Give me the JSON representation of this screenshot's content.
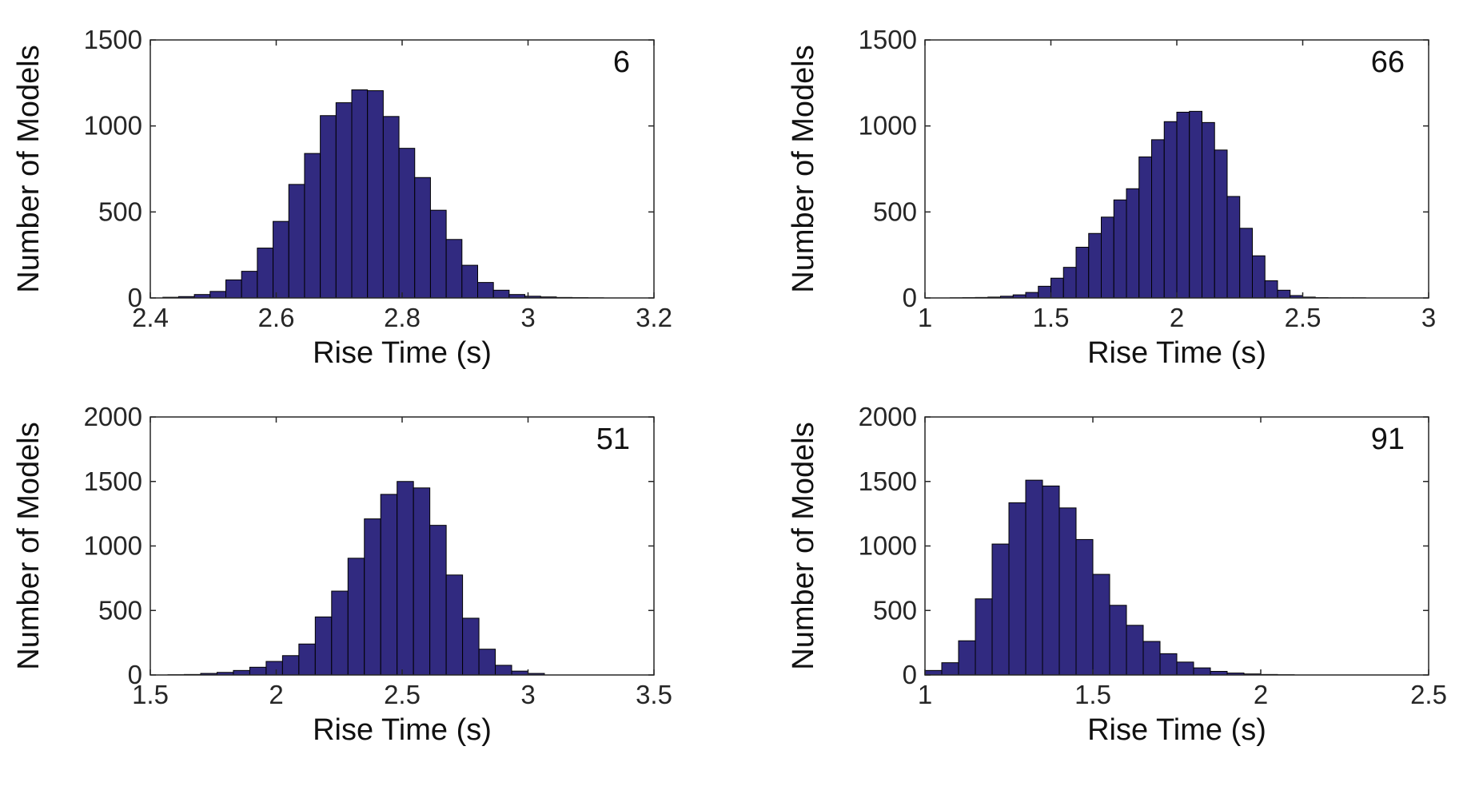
{
  "colors": {
    "bar_fill": "#312a80",
    "bar_stroke": "#000000",
    "axis": "#262626"
  },
  "chart_data": [
    {
      "type": "bar",
      "id_label": "6",
      "xlabel": "Rise Time (s)",
      "ylabel": "Number of Models",
      "xlim": [
        2.4,
        3.2
      ],
      "ylim": [
        0,
        1500
      ],
      "xticks": [
        2.4,
        2.6,
        2.8,
        3,
        3.2
      ],
      "xtick_labels": [
        "2.4",
        "2.6",
        "2.8",
        "3",
        "3.2"
      ],
      "yticks": [
        0,
        500,
        1000,
        1500
      ],
      "ytick_labels": [
        "0",
        "500",
        "1000",
        "1500"
      ],
      "bin_edges": [
        2.42,
        2.445,
        2.47,
        2.495,
        2.52,
        2.545,
        2.57,
        2.595,
        2.62,
        2.645,
        2.67,
        2.695,
        2.72,
        2.745,
        2.77,
        2.795,
        2.82,
        2.845,
        2.87,
        2.895,
        2.92,
        2.945,
        2.97,
        2.995,
        3.02,
        3.045,
        3.07,
        3.095,
        3.12
      ],
      "counts": [
        4,
        8,
        20,
        38,
        105,
        155,
        290,
        445,
        660,
        840,
        1060,
        1135,
        1210,
        1205,
        1055,
        870,
        700,
        510,
        340,
        190,
        90,
        45,
        20,
        10,
        6,
        3,
        2,
        1
      ]
    },
    {
      "type": "bar",
      "id_label": "66",
      "xlabel": "Rise Time (s)",
      "ylabel": "Number of Models",
      "xlim": [
        1,
        3
      ],
      "ylim": [
        0,
        1500
      ],
      "xticks": [
        1,
        1.5,
        2,
        2.5,
        3
      ],
      "xtick_labels": [
        "1",
        "1.5",
        "2",
        "2.5",
        "3"
      ],
      "yticks": [
        0,
        500,
        1000,
        1500
      ],
      "ytick_labels": [
        "0",
        "500",
        "1000",
        "1500"
      ],
      "bin_edges": [
        1.1,
        1.15,
        1.2,
        1.25,
        1.3,
        1.35,
        1.4,
        1.45,
        1.5,
        1.55,
        1.6,
        1.65,
        1.7,
        1.75,
        1.8,
        1.85,
        1.9,
        1.95,
        2.0,
        2.05,
        2.1,
        2.15,
        2.2,
        2.25,
        2.3,
        2.35,
        2.4,
        2.45,
        2.5,
        2.55,
        2.6,
        2.65,
        2.7,
        2.75
      ],
      "counts": [
        1,
        2,
        3,
        5,
        10,
        18,
        32,
        68,
        115,
        178,
        295,
        375,
        470,
        570,
        635,
        820,
        920,
        1025,
        1080,
        1085,
        1020,
        860,
        590,
        405,
        245,
        100,
        45,
        14,
        5,
        2,
        1,
        1,
        1
      ]
    },
    {
      "type": "bar",
      "id_label": "51",
      "xlabel": "Rise Time (s)",
      "ylabel": "Number of Models",
      "xlim": [
        1.5,
        3.5
      ],
      "ylim": [
        0,
        2000
      ],
      "xticks": [
        1.5,
        2,
        2.5,
        3,
        3.5
      ],
      "xtick_labels": [
        "1.5",
        "2",
        "2.5",
        "3",
        "3.5"
      ],
      "yticks": [
        0,
        500,
        1000,
        1500,
        2000
      ],
      "ytick_labels": [
        "0",
        "500",
        "1000",
        "1500",
        "2000"
      ],
      "bin_edges": [
        1.57,
        1.635,
        1.7,
        1.765,
        1.83,
        1.895,
        1.96,
        2.025,
        2.09,
        2.155,
        2.22,
        2.285,
        2.35,
        2.415,
        2.48,
        2.545,
        2.61,
        2.675,
        2.74,
        2.805,
        2.87,
        2.935,
        3.0,
        3.065
      ],
      "counts": [
        2,
        4,
        12,
        20,
        35,
        60,
        105,
        150,
        240,
        450,
        650,
        905,
        1210,
        1400,
        1500,
        1450,
        1160,
        775,
        440,
        200,
        75,
        30,
        12
      ]
    },
    {
      "type": "bar",
      "id_label": "91",
      "xlabel": "Rise Time (s)",
      "ylabel": "Number of Models",
      "xlim": [
        1,
        2.5
      ],
      "ylim": [
        0,
        2000
      ],
      "xticks": [
        1,
        1.5,
        2,
        2.5
      ],
      "xtick_labels": [
        "1",
        "1.5",
        "2",
        "2.5"
      ],
      "yticks": [
        0,
        500,
        1000,
        1500,
        2000
      ],
      "ytick_labels": [
        "0",
        "500",
        "1000",
        "1500",
        "2000"
      ],
      "bin_edges": [
        1.0,
        1.05,
        1.1,
        1.15,
        1.2,
        1.25,
        1.3,
        1.35,
        1.4,
        1.45,
        1.5,
        1.55,
        1.6,
        1.65,
        1.7,
        1.75,
        1.8,
        1.85,
        1.9,
        1.95,
        2.0,
        2.05,
        2.1
      ],
      "counts": [
        35,
        95,
        265,
        590,
        1015,
        1335,
        1510,
        1465,
        1295,
        1050,
        780,
        540,
        385,
        260,
        165,
        100,
        55,
        28,
        15,
        8,
        4,
        2
      ]
    }
  ]
}
